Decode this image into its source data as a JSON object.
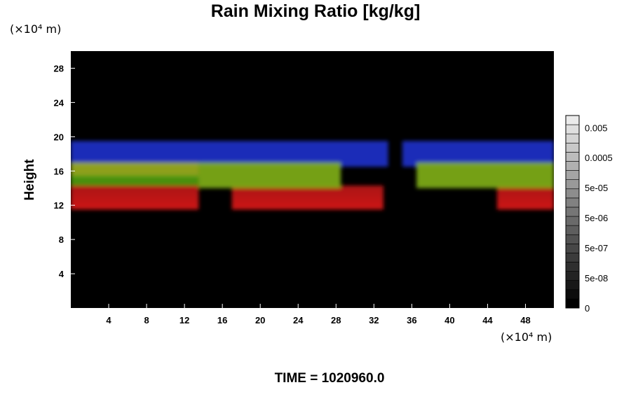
{
  "chart_data": {
    "type": "heatmap",
    "title": "Rain Mixing Ratio [kg/kg]",
    "x_unit": "(×10⁴ m)",
    "y_unit": "(×10⁴ m)",
    "ylabel": "Height",
    "xlabel": "",
    "footer": "TIME = 1020960.0",
    "xlim": [
      0,
      51
    ],
    "ylim": [
      0,
      30
    ],
    "x_ticks": [
      "4",
      "8",
      "12",
      "16",
      "20",
      "24",
      "28",
      "32",
      "36",
      "40",
      "44",
      "48"
    ],
    "y_ticks": [
      "4",
      "8",
      "12",
      "16",
      "20",
      "24",
      "28"
    ],
    "colorbar": {
      "labels": [
        "0",
        "5e-08",
        "5e-07",
        "5e-06",
        "5e-05",
        "0.0005",
        "0.005"
      ],
      "levels": 21
    },
    "bands": [
      {
        "name": "blue",
        "color": "#1f2fc8",
        "y_range": [
          16.5,
          19.5
        ],
        "x_ranges": [
          [
            0,
            33.5
          ],
          [
            35,
            51
          ]
        ]
      },
      {
        "name": "olive",
        "color": "#9aac1c",
        "y_range": [
          15.2,
          17.0
        ],
        "x_ranges": [
          [
            0,
            13.5
          ]
        ]
      },
      {
        "name": "green",
        "color": "#4f9a12",
        "y_range": [
          14.0,
          15.5
        ],
        "x_ranges": [
          [
            0,
            13.5
          ]
        ]
      },
      {
        "name": "red",
        "color": "#d11818",
        "y_range": [
          11.5,
          14.3
        ],
        "x_ranges": [
          [
            0,
            13.5
          ],
          [
            17,
            33
          ],
          [
            45,
            51
          ]
        ]
      },
      {
        "name": "green-plumes",
        "color": "#7fae1a",
        "y_range": [
          14.0,
          17.0
        ],
        "x_ranges": [
          [
            13.5,
            28.5
          ],
          [
            36.5,
            51
          ]
        ]
      }
    ]
  }
}
